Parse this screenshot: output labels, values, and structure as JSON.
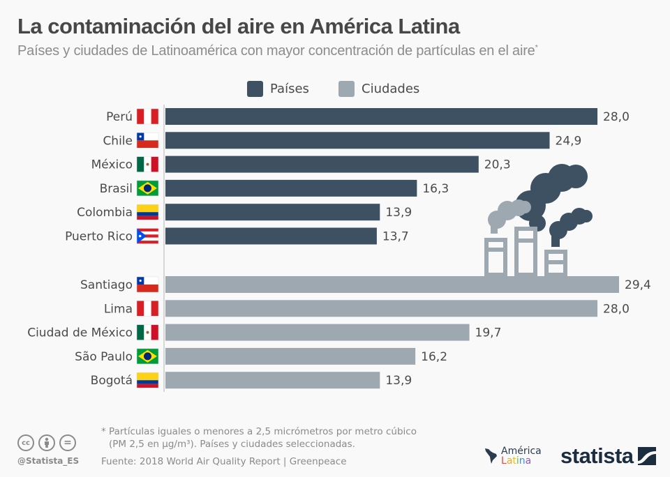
{
  "header": {
    "title": "La contaminación del aire en América Latina",
    "subtitle": "Países y ciudades de Latinoamérica con mayor concentración de partículas en el aire",
    "subtitle_mark": "*"
  },
  "legend": [
    {
      "label": "Países",
      "color": "#3d5163"
    },
    {
      "label": "Ciudades",
      "color": "#9ea8b1"
    }
  ],
  "chart_data": {
    "type": "bar",
    "orientation": "horizontal",
    "title": "La contaminación del aire en América Latina",
    "subtitle": "Países y ciudades de Latinoamérica con mayor concentración de partículas en el aire*",
    "xlabel": "",
    "ylabel": "",
    "xlim": [
      0,
      29.4
    ],
    "grid": false,
    "legend_position": "top-center",
    "series": [
      {
        "name": "Países",
        "color": "#3d5163",
        "categories": [
          "Perú",
          "Chile",
          "México",
          "Brasil",
          "Colombia",
          "Puerto Rico"
        ],
        "flags": [
          "peru",
          "chile",
          "mexico",
          "brazil",
          "colombia",
          "puerto-rico"
        ],
        "values": [
          28.0,
          24.9,
          20.3,
          16.3,
          13.9,
          13.7
        ],
        "labels": [
          "28,0",
          "24,9",
          "20,3",
          "16,3",
          "13,9",
          "13,7"
        ]
      },
      {
        "name": "Ciudades",
        "color": "#9ea8b1",
        "categories": [
          "Santiago",
          "Lima",
          "Ciudad de México",
          "São Paulo",
          "Bogotá"
        ],
        "flags": [
          "chile",
          "peru",
          "mexico",
          "brazil",
          "colombia"
        ],
        "values": [
          29.4,
          28.0,
          19.7,
          16.2,
          13.9
        ],
        "labels": [
          "29,4",
          "28,0",
          "19,7",
          "16,2",
          "13,9"
        ]
      }
    ]
  },
  "illustration": {
    "name": "factory-smoke-icon",
    "dark_color": "#3d5163",
    "light_color": "#9ea8b1"
  },
  "footer": {
    "footnote_line1": "* Partículas iguales o menores a 2,5 micrómetros por metro cúbico",
    "footnote_line2": "(PM 2,5 en µg/m³). Países y ciudades seleccionadas.",
    "source": "Fuente: 2018 World Air Quality Report | Greenpeace",
    "handle": "@Statista_ES",
    "cc_icons": [
      "cc",
      "by",
      "nd"
    ],
    "cc_labels": [
      "cc",
      "",
      "="
    ],
    "partner_logo_line1": "América",
    "partner_logo_line2": "Latina",
    "partner_logo_colors": [
      "#e84a3c",
      "#f5a623",
      "#f2c300",
      "#7bb240",
      "#3a8fd9",
      "#8e5bb5"
    ],
    "brand": "statista"
  }
}
